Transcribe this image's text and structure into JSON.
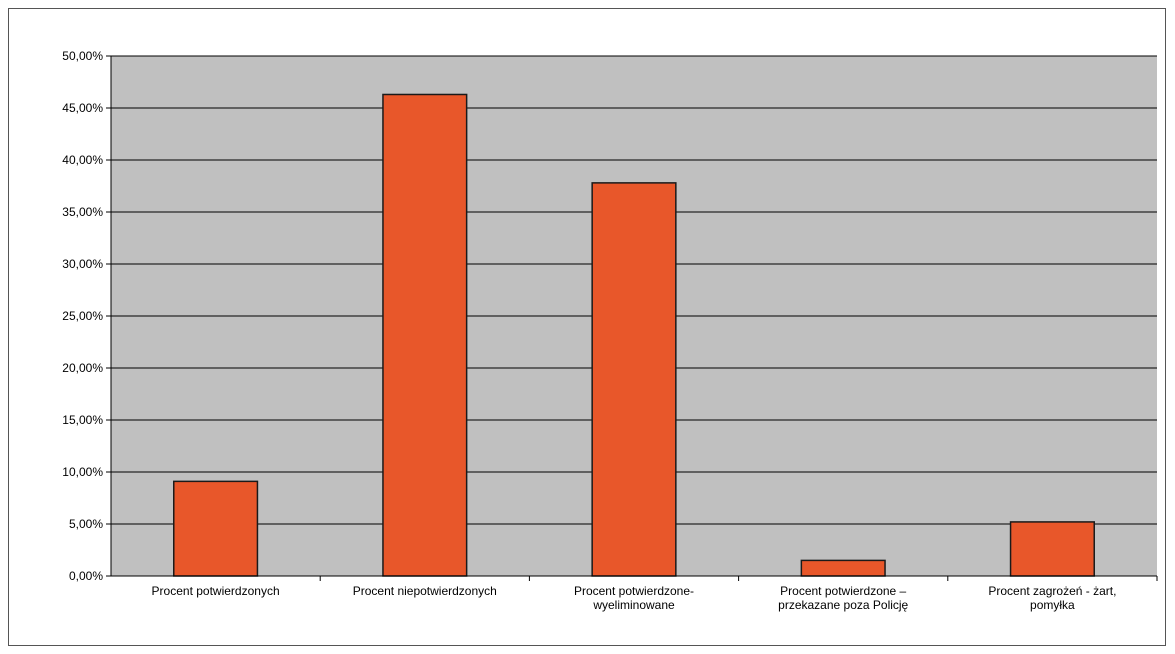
{
  "chart_data": {
    "type": "bar",
    "categories": [
      [
        "Procent potwierdzonych"
      ],
      [
        "Procent niepotwierdzonych"
      ],
      [
        "Procent potwierdzone-",
        "wyeliminowane"
      ],
      [
        "Procent potwierdzone –",
        "przekazane poza Policję"
      ],
      [
        "Procent zagrożeń - żart,",
        "pomyłka"
      ]
    ],
    "values": [
      9.1,
      46.3,
      37.8,
      1.5,
      5.2
    ],
    "ylim": [
      0,
      50
    ],
    "yticks": [
      "0,00%",
      "5,00%",
      "10,00%",
      "15,00%",
      "20,00%",
      "25,00%",
      "30,00%",
      "35,00%",
      "40,00%",
      "45,00%",
      "50,00%"
    ],
    "grid": true,
    "legend": "none",
    "colors": {
      "bar_fill": "#e8572a",
      "bar_stroke": "#1a1a1a",
      "plot_background": "#c0c0c0",
      "gridline": "#000000"
    }
  }
}
